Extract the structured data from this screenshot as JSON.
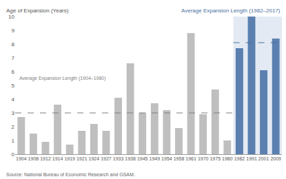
{
  "chart_data": {
    "type": "bar",
    "y_label": "Age of Expansion (Years)",
    "categories": [
      "1904",
      "1908",
      "1912",
      "1914",
      "1919",
      "1921",
      "1924",
      "1927",
      "1933",
      "1938",
      "1945",
      "1949",
      "1954",
      "1958",
      "1961",
      "1970",
      "1975",
      "1980",
      "1982",
      "1991",
      "2001",
      "2009"
    ],
    "values": [
      2.7,
      1.5,
      0.9,
      3.6,
      0.7,
      1.7,
      2.2,
      1.7,
      4.1,
      6.6,
      3.0,
      3.7,
      3.2,
      1.9,
      8.8,
      2.9,
      4.7,
      1.0,
      7.7,
      10.0,
      6.1,
      8.4
    ],
    "colors": [
      "#bfbfbf",
      "#bfbfbf",
      "#bfbfbf",
      "#bfbfbf",
      "#bfbfbf",
      "#bfbfbf",
      "#bfbfbf",
      "#bfbfbf",
      "#bfbfbf",
      "#bfbfbf",
      "#bfbfbf",
      "#bfbfbf",
      "#bfbfbf",
      "#bfbfbf",
      "#bfbfbf",
      "#bfbfbf",
      "#bfbfbf",
      "#bfbfbf",
      "#5b80b0",
      "#5b80b0",
      "#5b80b0",
      "#5b80b0"
    ],
    "ylim": [
      0,
      10
    ],
    "yticks": [
      0,
      1,
      2,
      3,
      4,
      5,
      6,
      7,
      8,
      9,
      10
    ],
    "grid": false,
    "averages": [
      {
        "label": "Average Expansion Length (1904–1980)",
        "value": 3.0,
        "from": "1904",
        "to": "1980",
        "color": "#7f7f7f"
      },
      {
        "label": "Average Expansion Length (1982–2017)",
        "value": 8.1,
        "from": "1982",
        "to": "2009",
        "color": "#4a6fa0"
      }
    ],
    "source": "Source: National Bureau of Economic Research and GSAM."
  }
}
